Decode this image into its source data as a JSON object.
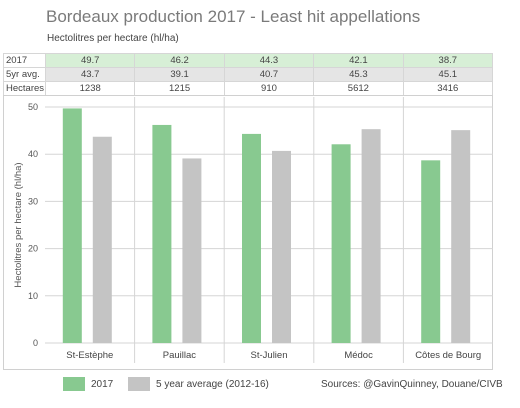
{
  "title": "Bordeaux production 2017 - Least hit appellations",
  "subtitle": "Hectolitres per hectare (hl/ha)",
  "table": {
    "rows": [
      {
        "label": "2017",
        "values": [
          "49.7",
          "46.2",
          "44.3",
          "42.1",
          "38.7"
        ]
      },
      {
        "label": "5yr avg.",
        "values": [
          "43.7",
          "39.1",
          "40.7",
          "45.3",
          "45.1"
        ]
      },
      {
        "label": "Hectares",
        "values": [
          "1238",
          "1215",
          "910",
          "5612",
          "3416"
        ]
      }
    ]
  },
  "legend": {
    "item_2017": "2017",
    "item_avg": "5 year average (2012-16)",
    "sources": "Sources: @GavinQuinney, Douane/CIVB"
  },
  "colors": {
    "series_2017": "#88c990",
    "series_avg": "#c4c4c4",
    "grid": "#d5d5d5"
  },
  "chart_data": {
    "type": "bar",
    "title": "Bordeaux production 2017 - Least hit appellations",
    "ylabel": "Hectolitres per hectare (hl/ha)",
    "xlabel": "",
    "categories": [
      "St-Estèphe",
      "Pauillac",
      "St-Julien",
      "Médoc",
      "Côtes de Bourg"
    ],
    "series": [
      {
        "name": "2017",
        "values": [
          49.7,
          46.2,
          44.3,
          42.1,
          38.7
        ]
      },
      {
        "name": "5 year average (2012-16)",
        "values": [
          43.7,
          39.1,
          40.7,
          45.3,
          45.1
        ]
      }
    ],
    "ylim": [
      0,
      50
    ],
    "yticks": [
      0,
      10,
      20,
      30,
      40,
      50
    ],
    "grid": true,
    "legend_position": "bottom"
  }
}
